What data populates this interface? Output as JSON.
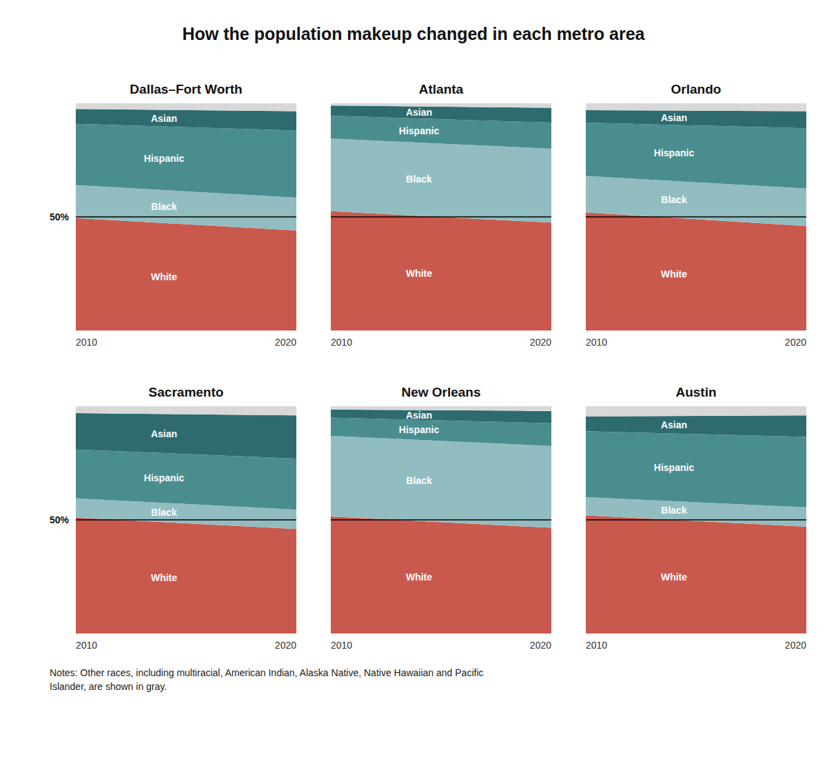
{
  "title": "How the population makeup changed in each metro area",
  "annotations": [
    "Notes: Other races, including multiracial, American Indian, Alaska Native, Native Hawaiian and Pacific\nIslander, are shown in gray."
  ],
  "chart_data": [
    {
      "type": "area",
      "stacked": true,
      "title": "Dallas–Fort Worth",
      "categories": [
        "2010",
        "2020"
      ],
      "ylim": [
        0,
        100
      ],
      "yticks": [
        {
          "value": 50,
          "label": "50%"
        }
      ],
      "grid": true,
      "series": [
        {
          "name": "White",
          "color": "#c9594c",
          "values": [
            49.5,
            44.0
          ]
        },
        {
          "name": "Black",
          "color": "#92bdc0",
          "values": [
            14.5,
            14.5
          ]
        },
        {
          "name": "Hispanic",
          "color": "#4a8d8f",
          "values": [
            27.0,
            29.5
          ]
        },
        {
          "name": "Asian",
          "color": "#2d6b6e",
          "values": [
            6.5,
            8.5
          ]
        },
        {
          "color": "#d8d8d8",
          "values": [
            2.5,
            3.5
          ]
        }
      ]
    },
    {
      "type": "area",
      "stacked": true,
      "title": "Atlanta",
      "categories": [
        "2010",
        "2020"
      ],
      "ylim": [
        0,
        100
      ],
      "yticks": [
        {
          "value": 50,
          "label": "50%"
        }
      ],
      "grid": true,
      "tick_labels": "x",
      "series": [
        {
          "name": "White",
          "color": "#c9594c",
          "values": [
            52.5,
            47.5
          ]
        },
        {
          "name": "Black",
          "color": "#92bdc0",
          "values": [
            32.0,
            32.5
          ]
        },
        {
          "name": "Hispanic",
          "color": "#4a8d8f",
          "values": [
            10.0,
            11.5
          ]
        },
        {
          "name": "Asian",
          "color": "#2d6b6e",
          "values": [
            4.5,
            6.5
          ]
        },
        {
          "color": "#d8d8d8",
          "values": [
            1.0,
            2.0
          ]
        }
      ]
    },
    {
      "type": "area",
      "stacked": true,
      "title": "Orlando",
      "categories": [
        "2010",
        "2020"
      ],
      "ylim": [
        0,
        100
      ],
      "yticks": [
        {
          "value": 50,
          "label": "50%"
        }
      ],
      "grid": true,
      "tick_labels": "x",
      "series": [
        {
          "name": "White",
          "color": "#c9594c",
          "values": [
            52.0,
            46.0
          ]
        },
        {
          "name": "Black",
          "color": "#92bdc0",
          "values": [
            16.0,
            16.5
          ]
        },
        {
          "name": "Hispanic",
          "color": "#4a8d8f",
          "values": [
            23.5,
            26.5
          ]
        },
        {
          "name": "Asian",
          "color": "#2d6b6e",
          "values": [
            5.5,
            7.5
          ]
        },
        {
          "color": "#d8d8d8",
          "values": [
            3.0,
            3.5
          ]
        }
      ]
    },
    {
      "type": "area",
      "stacked": true,
      "title": "Sacramento",
      "categories": [
        "2010",
        "2020"
      ],
      "ylim": [
        0,
        100
      ],
      "yticks": [
        {
          "value": 50,
          "label": "50%"
        }
      ],
      "grid": true,
      "series": [
        {
          "name": "White",
          "color": "#c9594c",
          "values": [
            51.0,
            46.0
          ]
        },
        {
          "name": "Black",
          "color": "#92bdc0",
          "values": [
            8.5,
            8.5
          ]
        },
        {
          "name": "Hispanic",
          "color": "#4a8d8f",
          "values": [
            21.5,
            22.5
          ]
        },
        {
          "name": "Asian",
          "color": "#2d6b6e",
          "values": [
            16.0,
            19.0
          ]
        },
        {
          "color": "#d8d8d8",
          "values": [
            3.0,
            4.0
          ]
        }
      ]
    },
    {
      "type": "area",
      "stacked": true,
      "title": "New Orleans",
      "categories": [
        "2010",
        "2020"
      ],
      "ylim": [
        0,
        100
      ],
      "yticks": [
        {
          "value": 50,
          "label": "50%"
        }
      ],
      "grid": true,
      "tick_labels": "x",
      "series": [
        {
          "name": "White",
          "color": "#c9594c",
          "values": [
            51.5,
            46.5
          ]
        },
        {
          "name": "Black",
          "color": "#92bdc0",
          "values": [
            35.5,
            36.0
          ]
        },
        {
          "name": "Hispanic",
          "color": "#4a8d8f",
          "values": [
            8.0,
            10.0
          ]
        },
        {
          "name": "Asian",
          "color": "#2d6b6e",
          "values": [
            3.5,
            5.5
          ]
        },
        {
          "color": "#d8d8d8",
          "values": [
            1.5,
            2.0
          ]
        }
      ]
    },
    {
      "type": "area",
      "stacked": true,
      "title": "Austin",
      "categories": [
        "2010",
        "2020"
      ],
      "ylim": [
        0,
        100
      ],
      "yticks": [
        {
          "value": 50,
          "label": "50%"
        }
      ],
      "grid": true,
      "tick_labels": "x",
      "series": [
        {
          "name": "White",
          "color": "#c9594c",
          "values": [
            52.0,
            47.0
          ]
        },
        {
          "name": "Black",
          "color": "#92bdc0",
          "values": [
            8.0,
            8.5
          ]
        },
        {
          "name": "Hispanic",
          "color": "#4a8d8f",
          "values": [
            29.0,
            31.0
          ]
        },
        {
          "name": "Asian",
          "color": "#2d6b6e",
          "values": [
            6.5,
            9.5
          ]
        },
        {
          "color": "#d8d8d8",
          "values": [
            4.5,
            4.0
          ]
        }
      ]
    }
  ]
}
